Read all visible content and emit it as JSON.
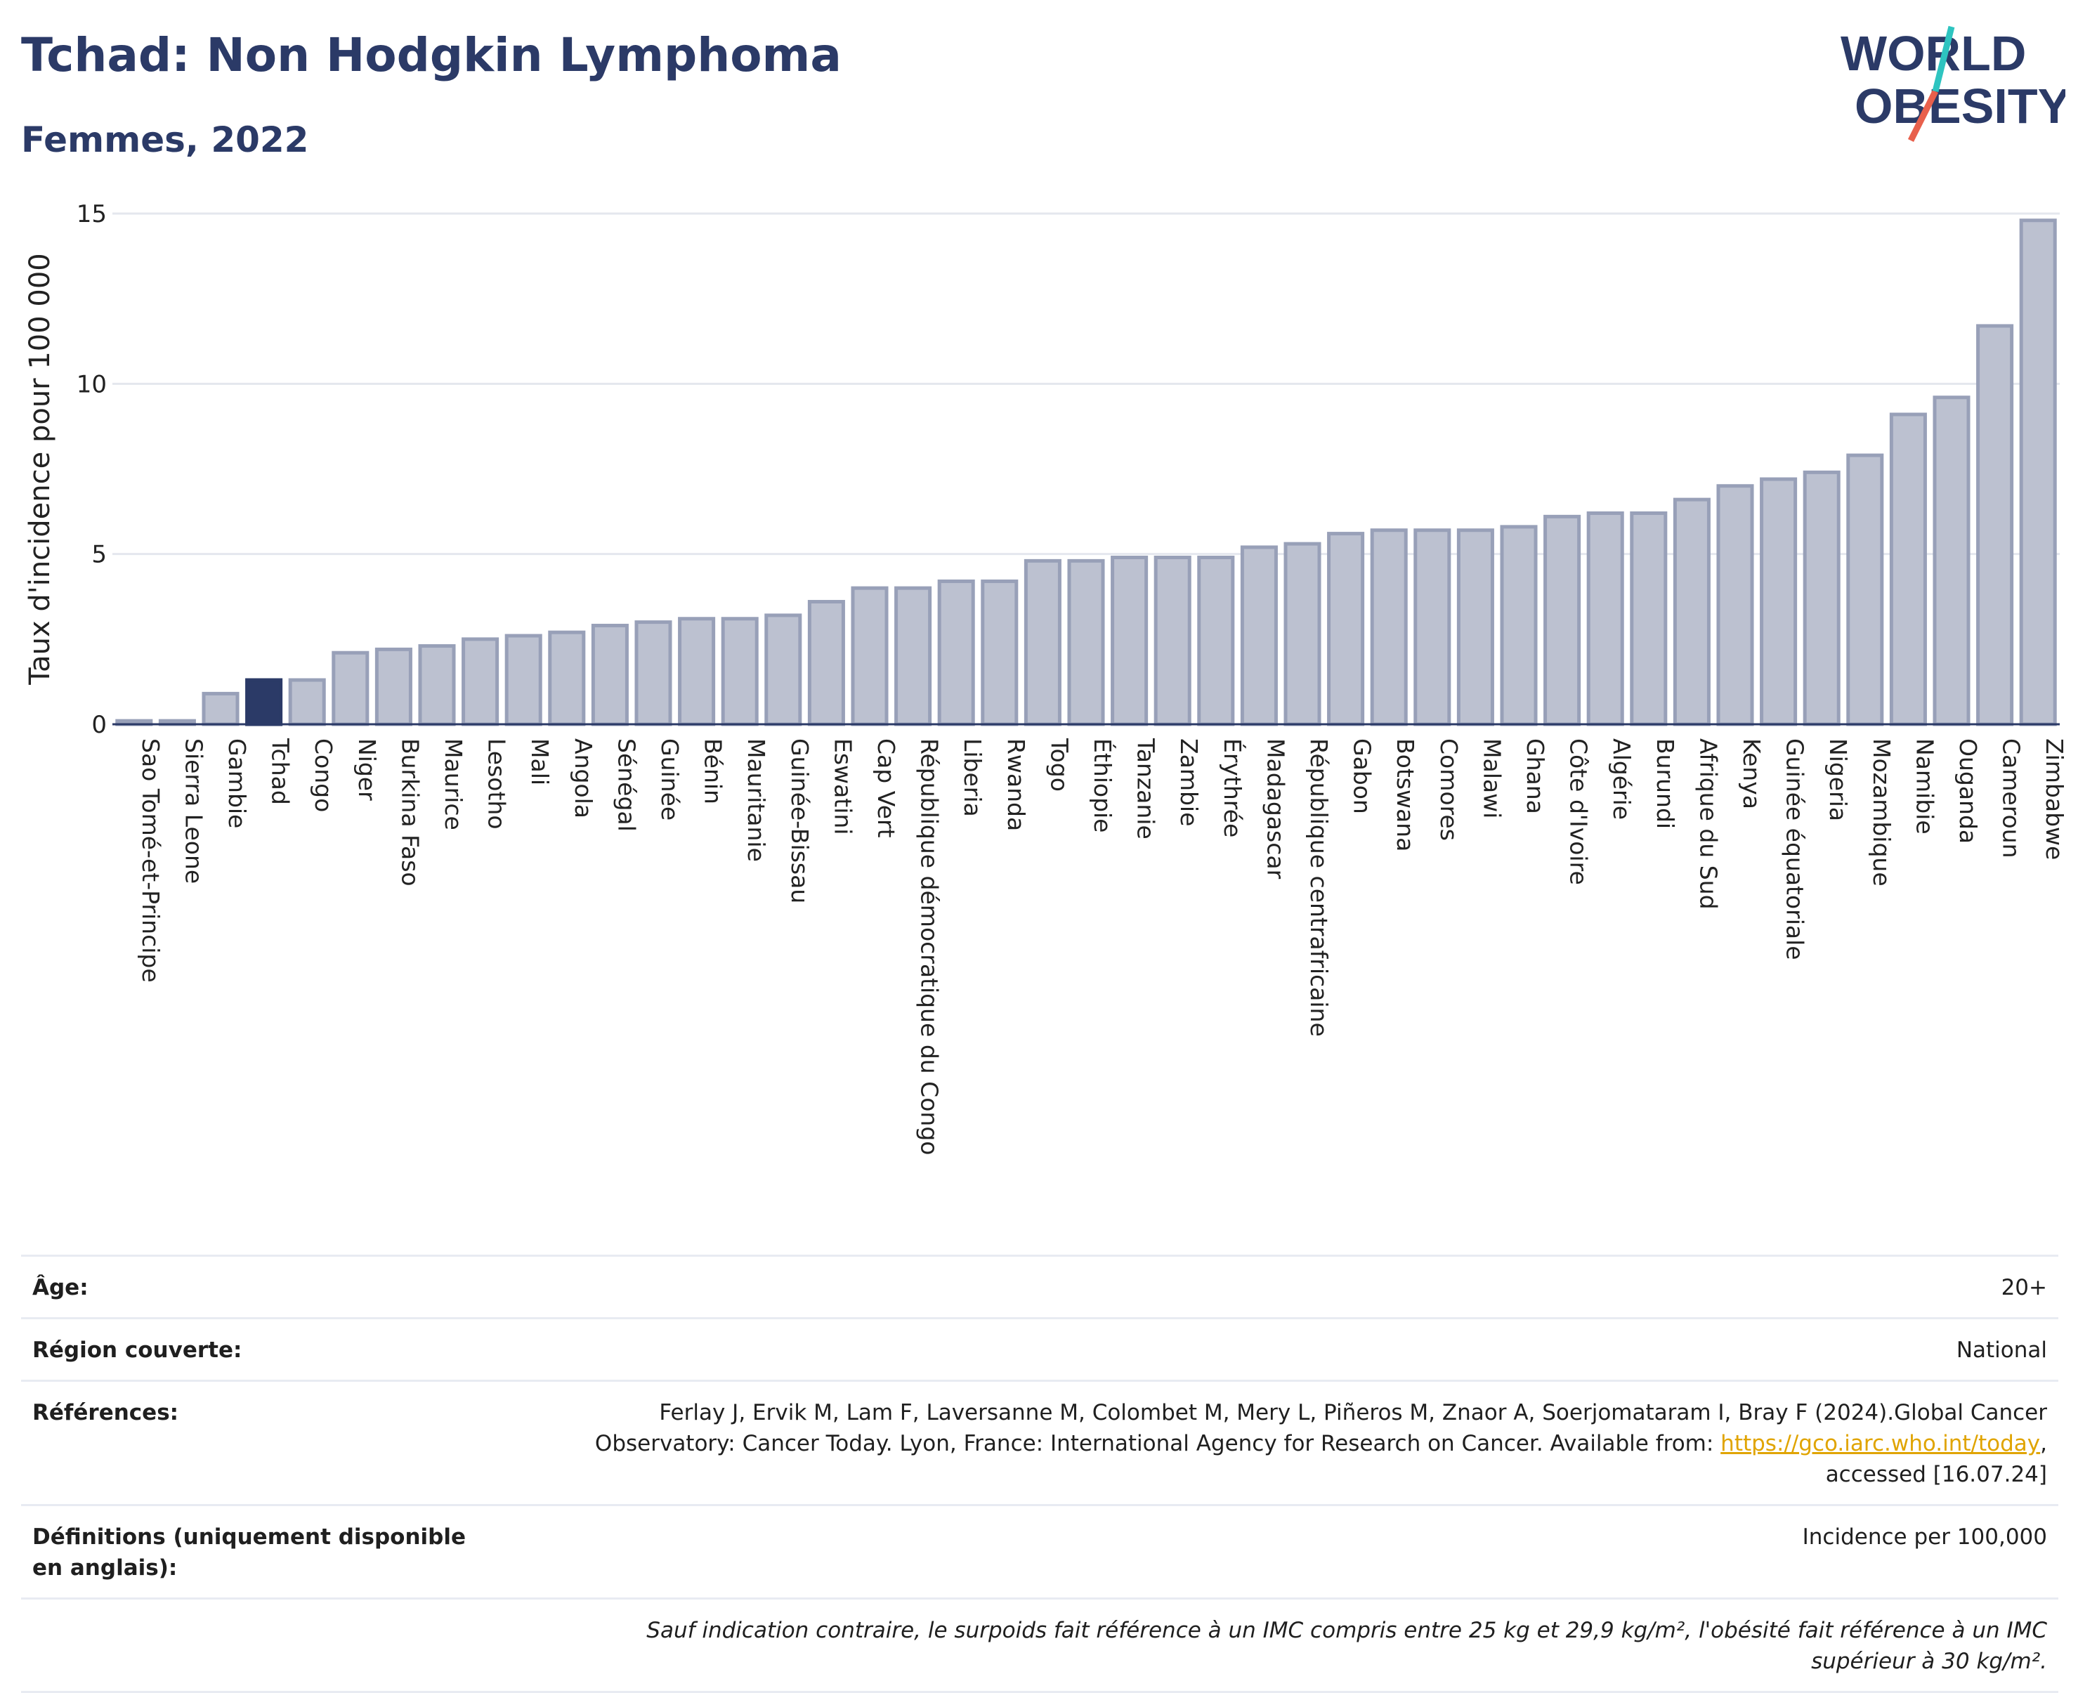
{
  "header": {
    "title": "Tchad: Non Hodgkin Lymphoma",
    "subtitle": "Femmes, 2022",
    "logo_line1": "WORLD",
    "logo_line2": "OBESITY"
  },
  "colors": {
    "bar": "#bcc1d0",
    "bar_edge": "#98a0b8",
    "highlight": "#2b3a67",
    "title": "#2b3a67",
    "logo_teal": "#2ec4c0",
    "logo_red": "#e8604c"
  },
  "chart_data": {
    "type": "bar",
    "title": "Tchad: Non Hodgkin Lymphoma",
    "subtitle": "Femmes, 2022",
    "xlabel": "",
    "ylabel": "Taux d'incidence pour 100 000",
    "ylim": [
      0,
      15
    ],
    "yticks": [
      0,
      5,
      10,
      15
    ],
    "grid": true,
    "highlight": "Tchad",
    "categories": [
      "Sao Tomé-et-Principe",
      "Sierra Leone",
      "Gambie",
      "Tchad",
      "Congo",
      "Niger",
      "Burkina Faso",
      "Maurice",
      "Lesotho",
      "Mali",
      "Angola",
      "Sénégal",
      "Guinée",
      "Bénin",
      "Mauritanie",
      "Guinée-Bissau",
      "Eswatini",
      "Cap Vert",
      "République démocratique du Congo",
      "Liberia",
      "Rwanda",
      "Togo",
      "Éthiopie",
      "Tanzanie",
      "Zambie",
      "Érythrée",
      "Madagascar",
      "République centrafricaine",
      "Gabon",
      "Botswana",
      "Comores",
      "Malawi",
      "Ghana",
      "Côte d'Ivoire",
      "Algérie",
      "Burundi",
      "Afrique du Sud",
      "Kenya",
      "Guinée équatoriale",
      "Nigeria",
      "Mozambique",
      "Namibie",
      "Ouganda",
      "Cameroun",
      "Zimbabwe"
    ],
    "values": [
      0.1,
      0.1,
      0.9,
      1.3,
      1.3,
      2.1,
      2.2,
      2.3,
      2.5,
      2.6,
      2.7,
      2.9,
      3.0,
      3.1,
      3.1,
      3.2,
      3.6,
      4.0,
      4.0,
      4.2,
      4.2,
      4.8,
      4.8,
      4.9,
      4.9,
      4.9,
      5.2,
      5.3,
      5.6,
      5.7,
      5.7,
      5.7,
      5.8,
      6.1,
      6.2,
      6.2,
      6.6,
      7.0,
      7.2,
      7.4,
      7.9,
      9.1,
      9.6,
      11.7,
      14.8
    ]
  },
  "info": {
    "age_label": "Âge:",
    "age_value": "20+",
    "region_label": "Région couverte:",
    "region_value": "National",
    "refs_label": "Références:",
    "refs_text": "Ferlay J, Ervik M, Lam F, Laversanne M, Colombet M, Mery L, Piñeros M, Znaor A, Soerjomataram I, Bray F (2024).Global Cancer Observatory: Cancer Today. Lyon, France: International Agency for Research on Cancer. Available from: ",
    "refs_link": "https://gco.iarc.who.int/today",
    "refs_tail": ", accessed [16.07.24]",
    "defs_label": "Définitions (uniquement disponible en anglais):",
    "defs_value": "Incidence per 100,000",
    "footnote": "Sauf indication contraire, le surpoids fait référence à un IMC compris entre 25 kg et 29,9 kg/m², l'obésité fait référence à un IMC supérieur à 30 kg/m²."
  }
}
